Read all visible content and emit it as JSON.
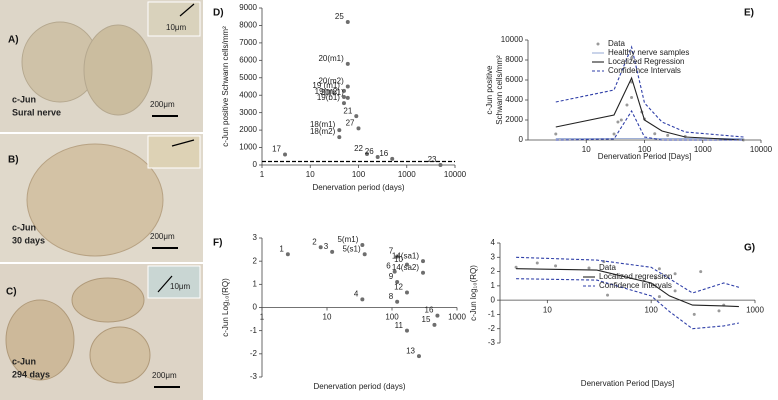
{
  "panels": [
    {
      "label": "A)",
      "stain": "c-Jun",
      "caption": "Sural nerve",
      "inset_scale": "10μm",
      "scale": "200μm"
    },
    {
      "label": "B)",
      "stain": "c-Jun",
      "caption": "30 days",
      "scale": "200μm"
    },
    {
      "label": "C)",
      "stain": "c-Jun",
      "caption": "294 days",
      "inset_scale": "10μm",
      "scale": "200μm"
    }
  ],
  "chart_data": [
    {
      "type": "scatter",
      "title": "D)",
      "ylabel": "c-Jun positive Schwann cells/mm²",
      "xlabel": "Denervation period (days)",
      "xlog": true,
      "xlim": [
        1,
        10000
      ],
      "xticks": [
        1,
        10,
        100,
        1000,
        10000
      ],
      "ylim": [
        0,
        9000
      ],
      "yticks": [
        0,
        1000,
        2000,
        3000,
        4000,
        5000,
        6000,
        7000,
        8000,
        9000
      ],
      "color": "#6e6e6e",
      "reference_line": 200,
      "x": [
        3,
        60,
        60,
        60,
        50,
        50,
        50,
        60,
        40,
        40,
        90,
        100,
        150,
        250,
        500,
        5000
      ],
      "values": [
        600,
        8200,
        5800,
        4500,
        4250,
        3900,
        3550,
        3850,
        2000,
        1600,
        2800,
        2100,
        630,
        460,
        350,
        0
      ],
      "labels": [
        "17",
        "25",
        "20(m1)",
        "20(m2)",
        "19 (m1)",
        "19(m2)",
        "19(b1)",
        "20(b1)",
        "18(m1)",
        "18(m2)",
        "21",
        "27",
        "22",
        "26",
        "16",
        "23"
      ]
    },
    {
      "type": "line",
      "title": "E)",
      "ylabel": [
        "c-Jun positive",
        "Schwann cells/mm²"
      ],
      "xlabel": "Denervation Period [Days]",
      "xlog": true,
      "xlim": [
        1,
        10000
      ],
      "xticks": [
        10,
        100,
        1000,
        10000
      ],
      "ylim": [
        0,
        10000
      ],
      "yticks": [
        0,
        2000,
        4000,
        6000,
        8000,
        10000
      ],
      "series": [
        {
          "name": "Data",
          "mode": "markers",
          "color": "#9a9a9a",
          "x": [
            3,
            30,
            35,
            40,
            50,
            60,
            60,
            60,
            90,
            100,
            150,
            250,
            500,
            5000
          ],
          "values": [
            600,
            600,
            1800,
            2000,
            3500,
            4250,
            5800,
            8200,
            2800,
            2100,
            630,
            460,
            350,
            0
          ]
        },
        {
          "name": "Healthy nerve samples",
          "mode": "line",
          "color": "#9fb0d8",
          "x": [
            3,
            5000
          ],
          "values": [
            150,
            150
          ]
        },
        {
          "name": "Localized Regression",
          "mode": "line",
          "color": "#222222",
          "x": [
            3,
            30,
            60,
            100,
            200,
            500,
            5000
          ],
          "values": [
            1300,
            2500,
            6200,
            2000,
            900,
            300,
            0
          ]
        },
        {
          "name": "Confidence Intervals",
          "mode": "band",
          "dash": true,
          "color": "#2f3fa8",
          "x": [
            3,
            30,
            60,
            100,
            200,
            500,
            5000
          ],
          "upper": [
            3800,
            5000,
            9300,
            3700,
            1800,
            800,
            300
          ],
          "lower": [
            0,
            100,
            2900,
            300,
            0,
            0,
            0
          ]
        }
      ]
    },
    {
      "type": "scatter",
      "title": "F)",
      "ylabel": "c-Jun Log₁₀(RQ)",
      "xlabel": "Denervation period (days)",
      "xlog": true,
      "xlim": [
        1,
        1000
      ],
      "xticks": [
        1,
        10,
        100,
        1000
      ],
      "ylim": [
        -3,
        3
      ],
      "yticks": [
        -3,
        -2,
        -1,
        0,
        1,
        2,
        3
      ],
      "color": "#6e6e6e",
      "x": [
        2.5,
        8,
        12,
        35,
        38,
        35,
        120,
        110,
        120,
        120,
        170,
        170,
        170,
        260,
        300,
        300,
        500,
        450
      ],
      "values": [
        2.3,
        2.6,
        2.4,
        2.7,
        2.3,
        0.35,
        2.2,
        1.55,
        1.1,
        0.25,
        1.85,
        0.65,
        -1.0,
        -2.1,
        2.0,
        1.5,
        -0.35,
        -0.75
      ],
      "labels": [
        "1",
        "2",
        "3",
        "5(m1)",
        "5(s1)",
        "4",
        "7",
        "6",
        "9",
        "8",
        "10",
        "12",
        "11",
        "13",
        "14(sa1)",
        "14(sa2)",
        "16",
        "15"
      ]
    },
    {
      "type": "line",
      "title": "G)",
      "ylabel": "c-Jun log₁₀(RQ)",
      "xlabel": "Denervation Period [Days]",
      "xlog": true,
      "xlim": [
        3.5,
        1000
      ],
      "xticks": [
        10,
        100,
        1000
      ],
      "ylim": [
        -3,
        4
      ],
      "yticks": [
        -3,
        -2,
        -1,
        0,
        1,
        2,
        3,
        4
      ],
      "series": [
        {
          "name": "Data",
          "mode": "markers",
          "color": "#9a9a9a",
          "x": [
            5,
            8,
            12,
            35,
            38,
            120,
            110,
            120,
            170,
            170,
            260,
            300,
            500,
            450
          ],
          "values": [
            2.3,
            2.6,
            2.4,
            2.7,
            0.35,
            2.2,
            1.55,
            0.25,
            1.85,
            0.65,
            -1.0,
            2.0,
            -0.35,
            -0.75
          ]
        },
        {
          "name": "Localized regression",
          "mode": "line",
          "color": "#222222",
          "x": [
            5,
            30,
            100,
            150,
            250,
            500,
            700
          ],
          "values": [
            2.2,
            2.1,
            1.2,
            0.3,
            -0.35,
            -0.4,
            -0.45
          ]
        },
        {
          "name": "Confidence Intervals",
          "mode": "band",
          "dash": true,
          "color": "#2f3fa8",
          "x": [
            5,
            30,
            100,
            150,
            250,
            500,
            700
          ],
          "upper": [
            3.0,
            2.8,
            2.3,
            1.5,
            0.5,
            1.2,
            0.9
          ],
          "lower": [
            1.5,
            1.4,
            0.3,
            -0.8,
            -2.0,
            -1.8,
            -1.6
          ]
        }
      ]
    }
  ]
}
